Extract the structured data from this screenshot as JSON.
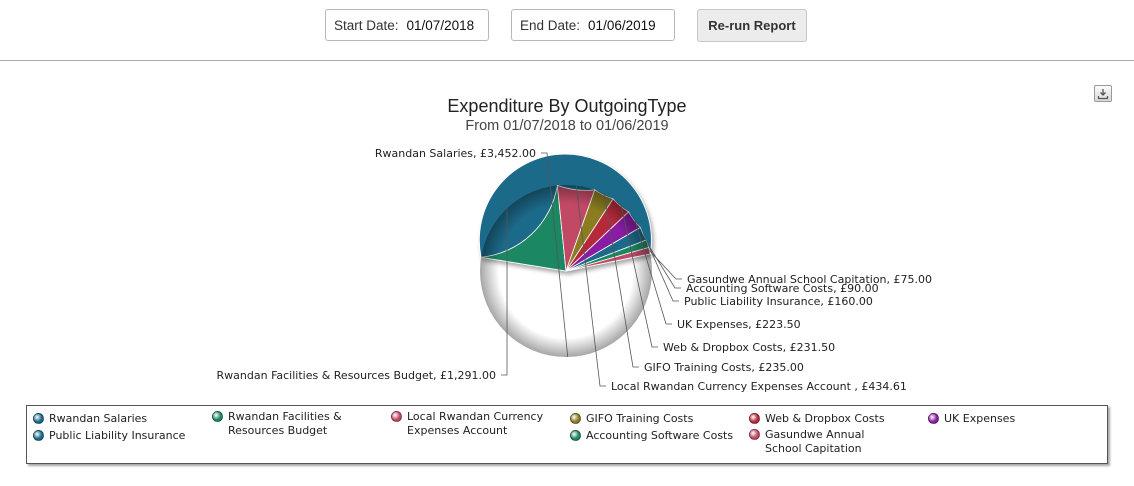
{
  "toolbar": {
    "start_label": "Start Date:",
    "start_value": "01/07/2018",
    "end_label": "End Date:",
    "end_value": "01/06/2019",
    "rerun_label": "Re-run Report"
  },
  "chart_data": {
    "type": "pie",
    "title": "Expenditure By OutgoingType",
    "subtitle": "From 01/07/2018 to 01/06/2019",
    "currency": "£",
    "slices": [
      {
        "name": "Rwandan Salaries",
        "value": 3452.0,
        "label": "Rwandan Salaries, £3,452.00",
        "color": "#1b6a8a"
      },
      {
        "name": "Rwandan Facilities & Resources Budget",
        "value": 1291.0,
        "label": "Rwandan Facilities & Resources Budget, £1,291.00",
        "color": "#1f8763"
      },
      {
        "name": "Local Rwandan Currency Expenses Account",
        "value": 434.61,
        "label": "Local Rwandan Currency Expenses Account , £434.61",
        "color": "#c04a66"
      },
      {
        "name": "GIFO Training Costs",
        "value": 235.0,
        "label": "GIFO Training Costs, £235.00",
        "color": "#8b7c20"
      },
      {
        "name": "Web & Dropbox Costs",
        "value": 231.5,
        "label": "Web & Dropbox Costs, £231.50",
        "color": "#b52b3a"
      },
      {
        "name": "UK Expenses",
        "value": 223.5,
        "label": "UK Expenses, £223.50",
        "color": "#8a1ea3"
      },
      {
        "name": "Public Liability Insurance",
        "value": 160.0,
        "label": "Public Liability Insurance, £160.00",
        "color": "#1b6a8a"
      },
      {
        "name": "Accounting Software Costs",
        "value": 90.0,
        "label": "Accounting Software Costs, £90.00",
        "color": "#1f8763"
      },
      {
        "name": "Gasundwe Annual School Capitation",
        "value": 75.0,
        "label": "Gasundwe Annual School Capitation, £75.00",
        "color": "#c04a66"
      }
    ],
    "legend": {
      "placement": "bottom",
      "items": [
        {
          "name": "Rwandan Salaries",
          "color": "#1b6a8a"
        },
        {
          "name": "Public Liability Insurance",
          "color": "#1b6a8a"
        },
        {
          "name": "Rwandan Facilities & Resources Budget",
          "color": "#1f8763"
        },
        {
          "name": "Local Rwandan Currency Expenses Account",
          "color": "#c04a66"
        },
        {
          "name": "GIFO Training Costs",
          "color": "#8b7c20"
        },
        {
          "name": "Accounting Software Costs",
          "color": "#1f8763"
        },
        {
          "name": "Web & Dropbox Costs",
          "color": "#b52b3a"
        },
        {
          "name": "Gasundwe Annual School Capitation",
          "color": "#c04a66"
        },
        {
          "name": "UK Expenses",
          "color": "#8a1ea3"
        }
      ]
    }
  },
  "export": {
    "icon": "download-icon"
  }
}
